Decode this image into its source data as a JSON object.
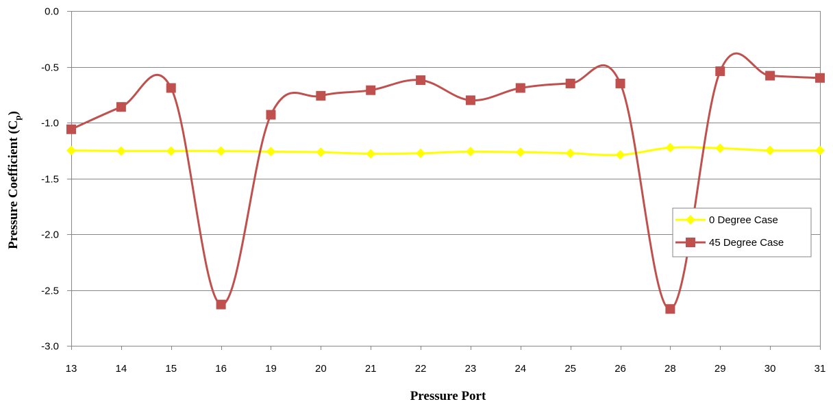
{
  "chart_data": {
    "type": "line",
    "title": "",
    "xlabel": "Pressure Port",
    "ylabel": "Pressure Coefficient (C",
    "ylabel_subscript": "p",
    "ylabel_suffix": ")",
    "categories": [
      "13",
      "14",
      "15",
      "16",
      "19",
      "20",
      "21",
      "22",
      "23",
      "24",
      "25",
      "26",
      "28",
      "29",
      "30",
      "31"
    ],
    "ylim": [
      -3.0,
      0.0
    ],
    "yticks": [
      0.0,
      -0.5,
      -1.0,
      -1.5,
      -2.0,
      -2.5,
      -3.0
    ],
    "ytick_labels": [
      "0.0",
      "-0.5",
      "-1.0",
      "-1.5",
      "-2.0",
      "-2.5",
      "-3.0"
    ],
    "grid": true,
    "legend_position": "right",
    "smooth": true,
    "series": [
      {
        "name": "0 Degree Case",
        "color": "#FFFF00",
        "marker": "diamond",
        "values": [
          -1.25,
          -1.255,
          -1.255,
          -1.255,
          -1.26,
          -1.265,
          -1.28,
          -1.275,
          -1.26,
          -1.265,
          -1.275,
          -1.29,
          -1.225,
          -1.23,
          -1.25,
          -1.25
        ]
      },
      {
        "name": "45 Degree Case",
        "color": "#C0504D",
        "marker": "square",
        "values": [
          -1.06,
          -0.86,
          -0.69,
          -2.63,
          -0.93,
          -0.76,
          -0.71,
          -0.62,
          -0.8,
          -0.69,
          -0.65,
          -0.65,
          -2.67,
          -0.54,
          -0.58,
          -0.6
        ]
      }
    ]
  }
}
